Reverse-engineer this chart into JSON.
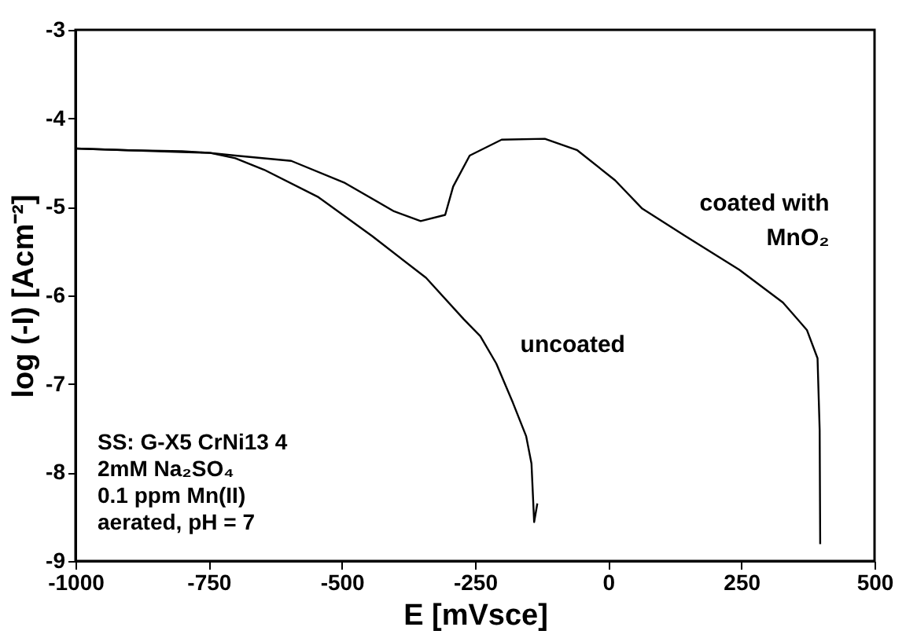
{
  "chart_data": {
    "type": "line",
    "xlabel": "E [mVsce]",
    "ylabel": "log (-I)   [Acm⁻²]",
    "xlim": [
      -1000,
      500
    ],
    "xticks": [
      -1000,
      -750,
      -500,
      -250,
      0,
      250,
      500
    ],
    "ylim": [
      -9,
      -3
    ],
    "yticks": [
      -9,
      -8,
      -7,
      -6,
      -5,
      -4,
      -3
    ],
    "grid": false,
    "legend": false,
    "marker": "none",
    "line_style": "solid",
    "annotations": [
      "SS: G-X5 CrNi13 4",
      "2mM Na₂SO₄",
      "0.1 ppm Mn(II)",
      "aerated, pH = 7"
    ],
    "series": [
      {
        "name": "uncoated",
        "color": "#000000",
        "x": [
          -1000,
          -900,
          -800,
          -747,
          -700,
          -646,
          -544,
          -443,
          -342,
          -271,
          -240,
          -210,
          -179,
          -154,
          -144,
          -139,
          -133
        ],
        "values": [
          -4.34,
          -4.36,
          -4.38,
          -4.39,
          -4.45,
          -4.58,
          -4.89,
          -5.33,
          -5.8,
          -6.27,
          -6.46,
          -6.77,
          -7.21,
          -7.59,
          -7.9,
          -8.56,
          -8.35
        ]
      },
      {
        "name": "coated with MnO₂",
        "color": "#000000",
        "x": [
          -1000,
          -900,
          -800,
          -747,
          -700,
          -595,
          -494,
          -402,
          -352,
          -306,
          -291,
          -260,
          -200,
          -119,
          -58,
          13,
          64,
          145,
          246,
          328,
          373,
          393,
          397,
          398
        ],
        "values": [
          -4.34,
          -4.36,
          -4.37,
          -4.39,
          -4.42,
          -4.48,
          -4.73,
          -5.05,
          -5.16,
          -5.09,
          -4.77,
          -4.42,
          -4.24,
          -4.23,
          -4.36,
          -4.7,
          -5.02,
          -5.33,
          -5.71,
          -6.08,
          -6.39,
          -6.71,
          -7.52,
          -8.81
        ]
      }
    ]
  }
}
